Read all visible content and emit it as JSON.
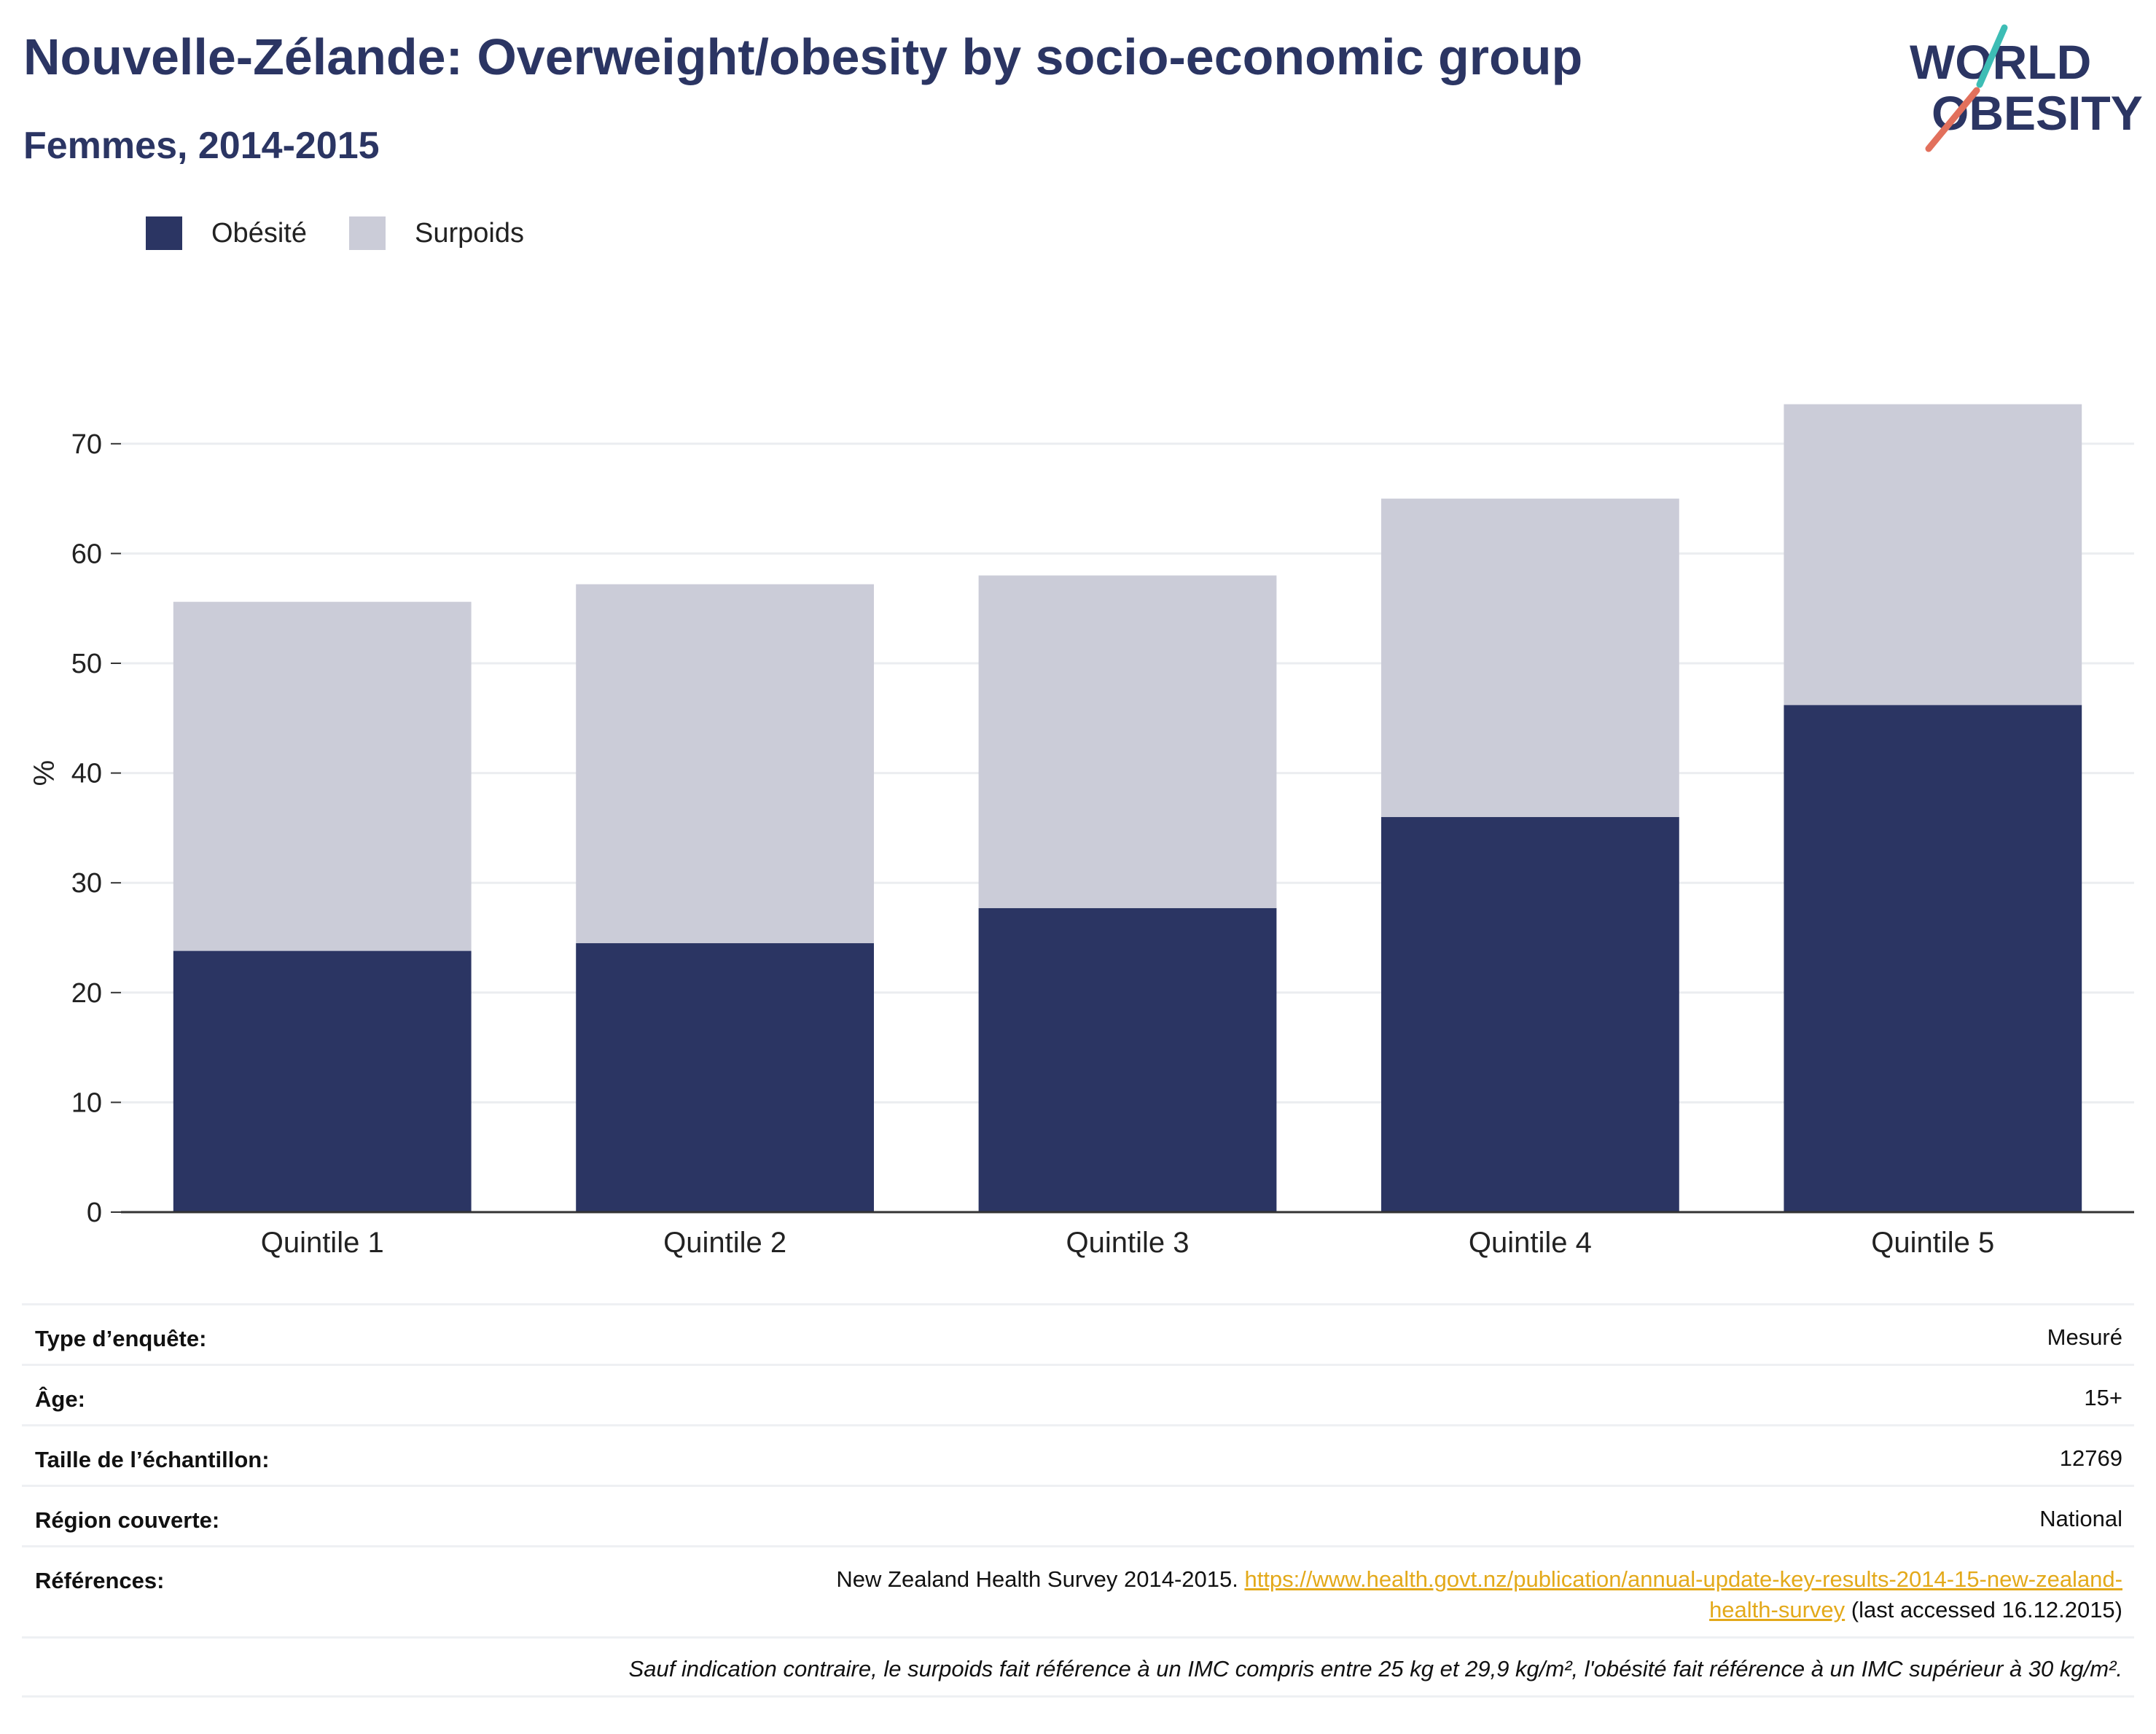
{
  "title": "Nouvelle-Zélande: Overweight/obesity by socio-economic group",
  "subtitle": "Femmes, 2014-2015",
  "logo": {
    "line1": "WORLD",
    "line2": "OBESITY"
  },
  "colors": {
    "obesity": "#2b3563",
    "overweight": "#cbccd8",
    "title": "#2b3563",
    "link": "#e3a91a"
  },
  "chart_data": {
    "type": "bar",
    "stacked": true,
    "categories": [
      "Quintile 1",
      "Quintile 2",
      "Quintile 3",
      "Quintile 4",
      "Quintile 5"
    ],
    "series": [
      {
        "name": "Obésité",
        "values": [
          23.8,
          24.5,
          27.7,
          36.0,
          46.2
        ]
      },
      {
        "name": "Surpoids",
        "values": [
          31.8,
          32.7,
          30.3,
          29.0,
          27.4
        ]
      }
    ],
    "ylabel": "%",
    "ylim": [
      0,
      75
    ],
    "yticks": [
      0,
      10,
      20,
      30,
      40,
      50,
      60,
      70
    ],
    "grid": true,
    "legend_position": "top-left"
  },
  "meta": [
    {
      "label": "Type d’enquête:",
      "value": "Mesuré"
    },
    {
      "label": "Âge:",
      "value": "15+"
    },
    {
      "label": "Taille de l’échantillon:",
      "value": "12769"
    },
    {
      "label": "Région couverte:",
      "value": "National"
    }
  ],
  "references": {
    "label": "Références:",
    "text_before": "New Zealand Health Survey 2014-2015. ",
    "link_part1": "https://www.health.govt.nz/publication/annual-update-key-results-2014-15-new-zealand-",
    "link_part2": "health-survey",
    "text_after": " (last accessed 16.12.2015)"
  },
  "footnote": "Sauf indication contraire, le surpoids fait référence à un IMC compris entre 25 kg et 29,9 kg/m², l'obésité fait référence à un IMC supérieur à 30 kg/m²."
}
